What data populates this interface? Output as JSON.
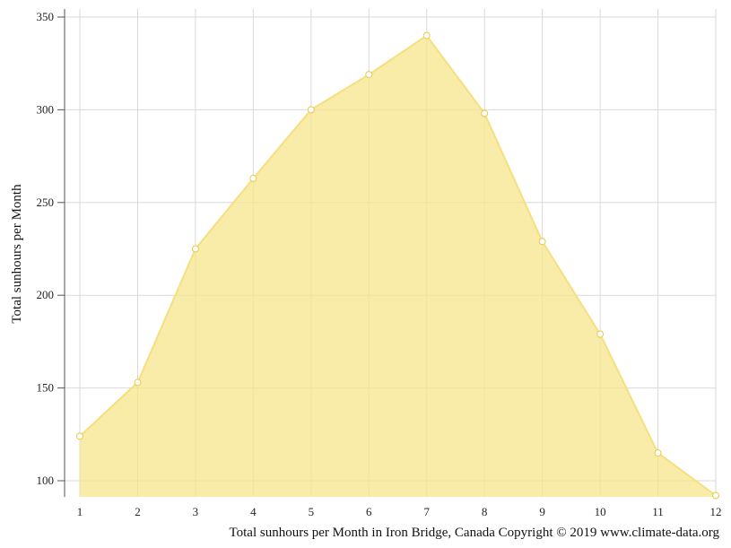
{
  "chart_data": {
    "type": "area",
    "x": [
      1,
      2,
      3,
      4,
      5,
      6,
      7,
      8,
      9,
      10,
      11,
      12
    ],
    "series": [
      {
        "values": [
          124,
          153,
          225,
          263,
          300,
          319,
          340,
          298,
          229,
          179,
          115,
          92
        ]
      }
    ],
    "xlabel": "",
    "ylabel": "Total sunhours per Month",
    "ylim": [
      92,
      355
    ],
    "yticks": [
      100,
      150,
      200,
      250,
      300,
      350
    ],
    "xticks": [
      "1",
      "2",
      "3",
      "4",
      "5",
      "6",
      "7",
      "8",
      "9",
      "10",
      "11",
      "12"
    ],
    "grid": true,
    "caption": "Total sunhours per Month in Iron Bridge, Canada Copyright © 2019 www.climate-data.org",
    "colors": {
      "fill": "#f7e48b",
      "line": "#f5df7f",
      "point_fill": "#ffffff",
      "grid": "#d9d9d9",
      "axis": "#555555"
    }
  }
}
